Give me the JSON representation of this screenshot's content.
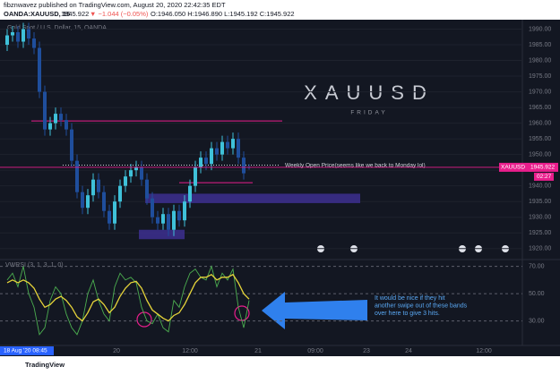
{
  "header": {
    "line1": "fibznwavez published on TradingView.com, August 20, 2020 22:42:35 EDT",
    "symbol": "OANDA:XAUUSD, 15",
    "last": "1945.922",
    "change": "▼ −1.044 (−0.05%)",
    "ohlc": "O:1946.050 H:1946.890 L:1945.192 C:1945.922"
  },
  "chart_data": {
    "type": "candlestick",
    "title": "Gold Spot / U.S. Dollar, 15, OANDA",
    "watermark": "XAUUSD",
    "watermark_sub": "FRIDAY",
    "up_color": "#3fc1d9",
    "down_color": "#1f4e9c",
    "opens": [
      1985,
      1988,
      1989,
      1986,
      1990,
      1987,
      1984,
      1970,
      1958,
      1960,
      1963,
      1961,
      1958,
      1948,
      1938,
      1933,
      1937,
      1942,
      1938,
      1932,
      1928,
      1935,
      1940,
      1943,
      1945,
      1946,
      1942,
      1936,
      1930,
      1928,
      1931,
      1926,
      1932,
      1929,
      1935,
      1940,
      1946,
      1949,
      1947,
      1952,
      1950,
      1954,
      1952,
      1955,
      1949,
      1946.05
    ],
    "highs": [
      1990,
      1991,
      1991,
      1992,
      1992,
      1989,
      1986,
      1972,
      1962,
      1965,
      1965,
      1963,
      1960,
      1950,
      1940,
      1939,
      1944,
      1944,
      1940,
      1934,
      1937,
      1942,
      1945,
      1947,
      1948,
      1948,
      1944,
      1938,
      1932,
      1933,
      1933,
      1934,
      1934,
      1937,
      1942,
      1948,
      1951,
      1951,
      1954,
      1954,
      1956,
      1956,
      1957,
      1957,
      1951,
      1946.89
    ],
    "lows": [
      1983,
      1986,
      1984,
      1984,
      1985,
      1982,
      1968,
      1956,
      1956,
      1958,
      1959,
      1956,
      1946,
      1936,
      1931,
      1931,
      1935,
      1936,
      1930,
      1926,
      1926,
      1933,
      1938,
      1941,
      1943,
      1940,
      1934,
      1928,
      1926,
      1926,
      1924,
      1924,
      1927,
      1927,
      1933,
      1938,
      1944,
      1945,
      1945,
      1948,
      1948,
      1950,
      1950,
      1947,
      1942,
      1945.192
    ],
    "closes": [
      1988,
      1989,
      1986,
      1990,
      1987,
      1984,
      1970,
      1958,
      1960,
      1963,
      1961,
      1958,
      1948,
      1938,
      1933,
      1937,
      1942,
      1938,
      1932,
      1928,
      1935,
      1940,
      1943,
      1945,
      1946,
      1942,
      1936,
      1930,
      1928,
      1931,
      1926,
      1932,
      1929,
      1935,
      1940,
      1946,
      1949,
      1947,
      1952,
      1950,
      1954,
      1952,
      1955,
      1949,
      1944,
      1945.922
    ],
    "ylim": [
      1916.5,
      1993
    ],
    "yticks": [
      {
        "value": 1990,
        "label": "1990.00"
      },
      {
        "value": 1985,
        "label": "1985.00"
      },
      {
        "value": 1980,
        "label": "1980.00"
      },
      {
        "value": 1975,
        "label": "1975.00"
      },
      {
        "value": 1970,
        "label": "1970.00"
      },
      {
        "value": 1965,
        "label": "1965.00"
      },
      {
        "value": 1960,
        "label": "1960.00"
      },
      {
        "value": 1955,
        "label": "1955.00"
      },
      {
        "value": 1950,
        "label": "1950.00"
      },
      {
        "value": 1945,
        "label": "1945.00"
      },
      {
        "value": 1940,
        "label": "1940.00"
      },
      {
        "value": 1935,
        "label": "1935.00"
      },
      {
        "value": 1930,
        "label": "1930.00"
      },
      {
        "value": 1925,
        "label": "1925.00"
      },
      {
        "value": 1920,
        "label": "1920.00"
      }
    ],
    "price_tag": "XAUUSD",
    "price_tag_value": 1945.922,
    "countdown": "02:27",
    "levels": [
      {
        "value": 1960.7,
        "color": "#e91e8c"
      },
      {
        "value": 1941,
        "color": "#e91e8c"
      }
    ],
    "weekly_open": {
      "value": 1946.6,
      "label": "Weekly Open Price(seems like we back to Monday lol)"
    },
    "zones": [
      {
        "top": 1937.5,
        "bottom": 1934.5
      },
      {
        "top": 1926,
        "bottom": 1923
      }
    ],
    "indicator": {
      "title": "VWRSI (3, 1, 3, 1, 0)",
      "ylim": [
        12,
        75
      ],
      "yticks": [
        {
          "value": 70,
          "label": "70.00"
        },
        {
          "value": 50,
          "label": "50.00"
        },
        {
          "value": 30,
          "label": "30.00"
        }
      ],
      "series": [
        {
          "name": "RSI",
          "color": "#4caf50",
          "values": [
            60,
            65,
            55,
            70,
            50,
            40,
            20,
            25,
            45,
            55,
            50,
            35,
            25,
            20,
            30,
            50,
            60,
            45,
            35,
            30,
            55,
            65,
            60,
            62,
            58,
            40,
            30,
            28,
            35,
            25,
            22,
            45,
            40,
            55,
            65,
            68,
            62,
            60,
            70,
            55,
            65,
            60,
            68,
            40,
            25,
            45
          ]
        },
        {
          "name": "MA",
          "color": "#e6d43a",
          "values": [
            58,
            60,
            58,
            60,
            58,
            54,
            46,
            40,
            42,
            46,
            48,
            45,
            40,
            33,
            30,
            36,
            44,
            46,
            42,
            36,
            40,
            48,
            54,
            58,
            59,
            54,
            45,
            38,
            35,
            32,
            30,
            34,
            36,
            42,
            50,
            58,
            62,
            62,
            64,
            60,
            62,
            62,
            64,
            58,
            50,
            46
          ]
        }
      ]
    },
    "time_labels": [
      "20",
      "12:00",
      "21",
      "09:00",
      "23",
      "24",
      "12:00"
    ],
    "date_box": "18 Aug '20  08:45",
    "annotation": [
      "It would be nice if they hit",
      "another swipe out of these bands",
      "over here to give 3 hits."
    ]
  },
  "footer": "TradingView"
}
